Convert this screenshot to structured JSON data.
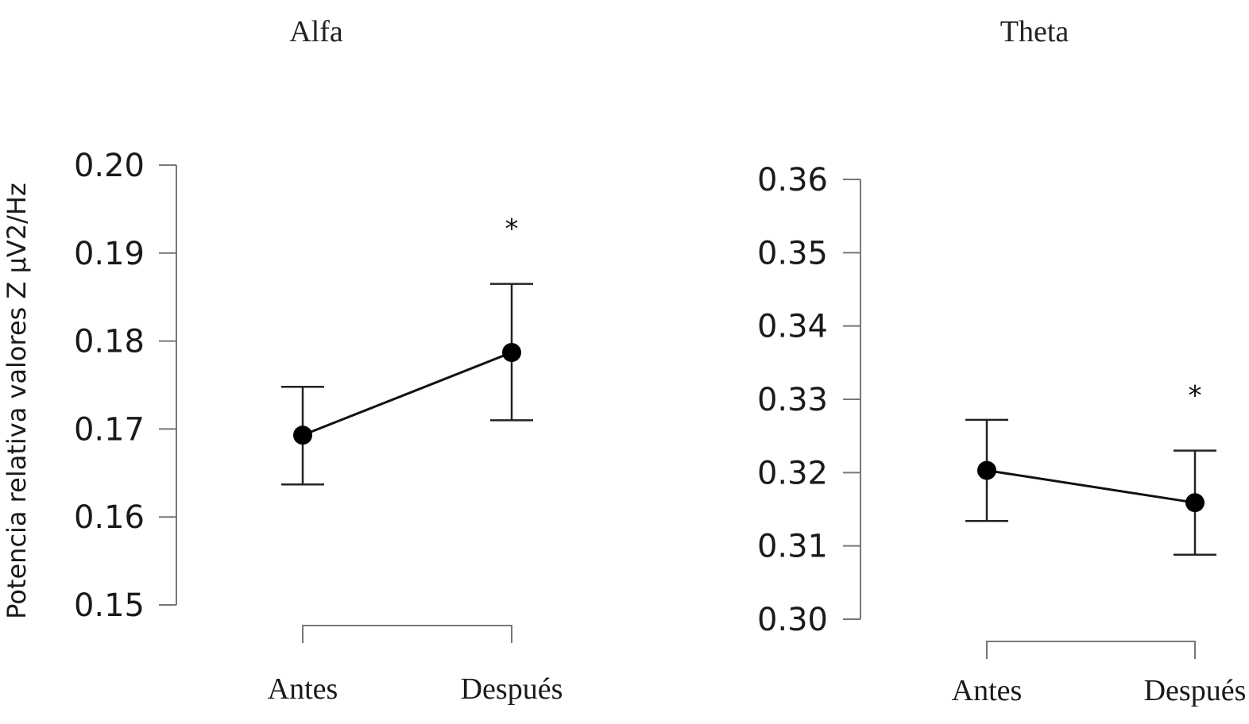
{
  "ylabel": "Potencia relativa valores Z μV2/Hz",
  "chart_data": [
    {
      "type": "line",
      "title": "Alfa",
      "categories": [
        "Antes",
        "Después"
      ],
      "values": [
        0.1693,
        0.1787
      ],
      "err_low": [
        0.1637,
        0.171
      ],
      "err_high": [
        0.1748,
        0.1865
      ],
      "significance": [
        "",
        "*"
      ],
      "ylim": [
        0.15,
        0.2
      ],
      "yticks": [
        "0.15",
        "0.16",
        "0.17",
        "0.18",
        "0.19",
        "0.20"
      ],
      "grid": false
    },
    {
      "type": "line",
      "title": "Theta",
      "categories": [
        "Antes",
        "Después"
      ],
      "values": [
        0.3203,
        0.3159
      ],
      "err_low": [
        0.3134,
        0.3088
      ],
      "err_high": [
        0.3272,
        0.323
      ],
      "significance": [
        "",
        "*"
      ],
      "ylim": [
        0.3,
        0.36
      ],
      "yticks": [
        "0.30",
        "0.31",
        "0.32",
        "0.33",
        "0.34",
        "0.35",
        "0.36"
      ],
      "grid": false
    }
  ]
}
